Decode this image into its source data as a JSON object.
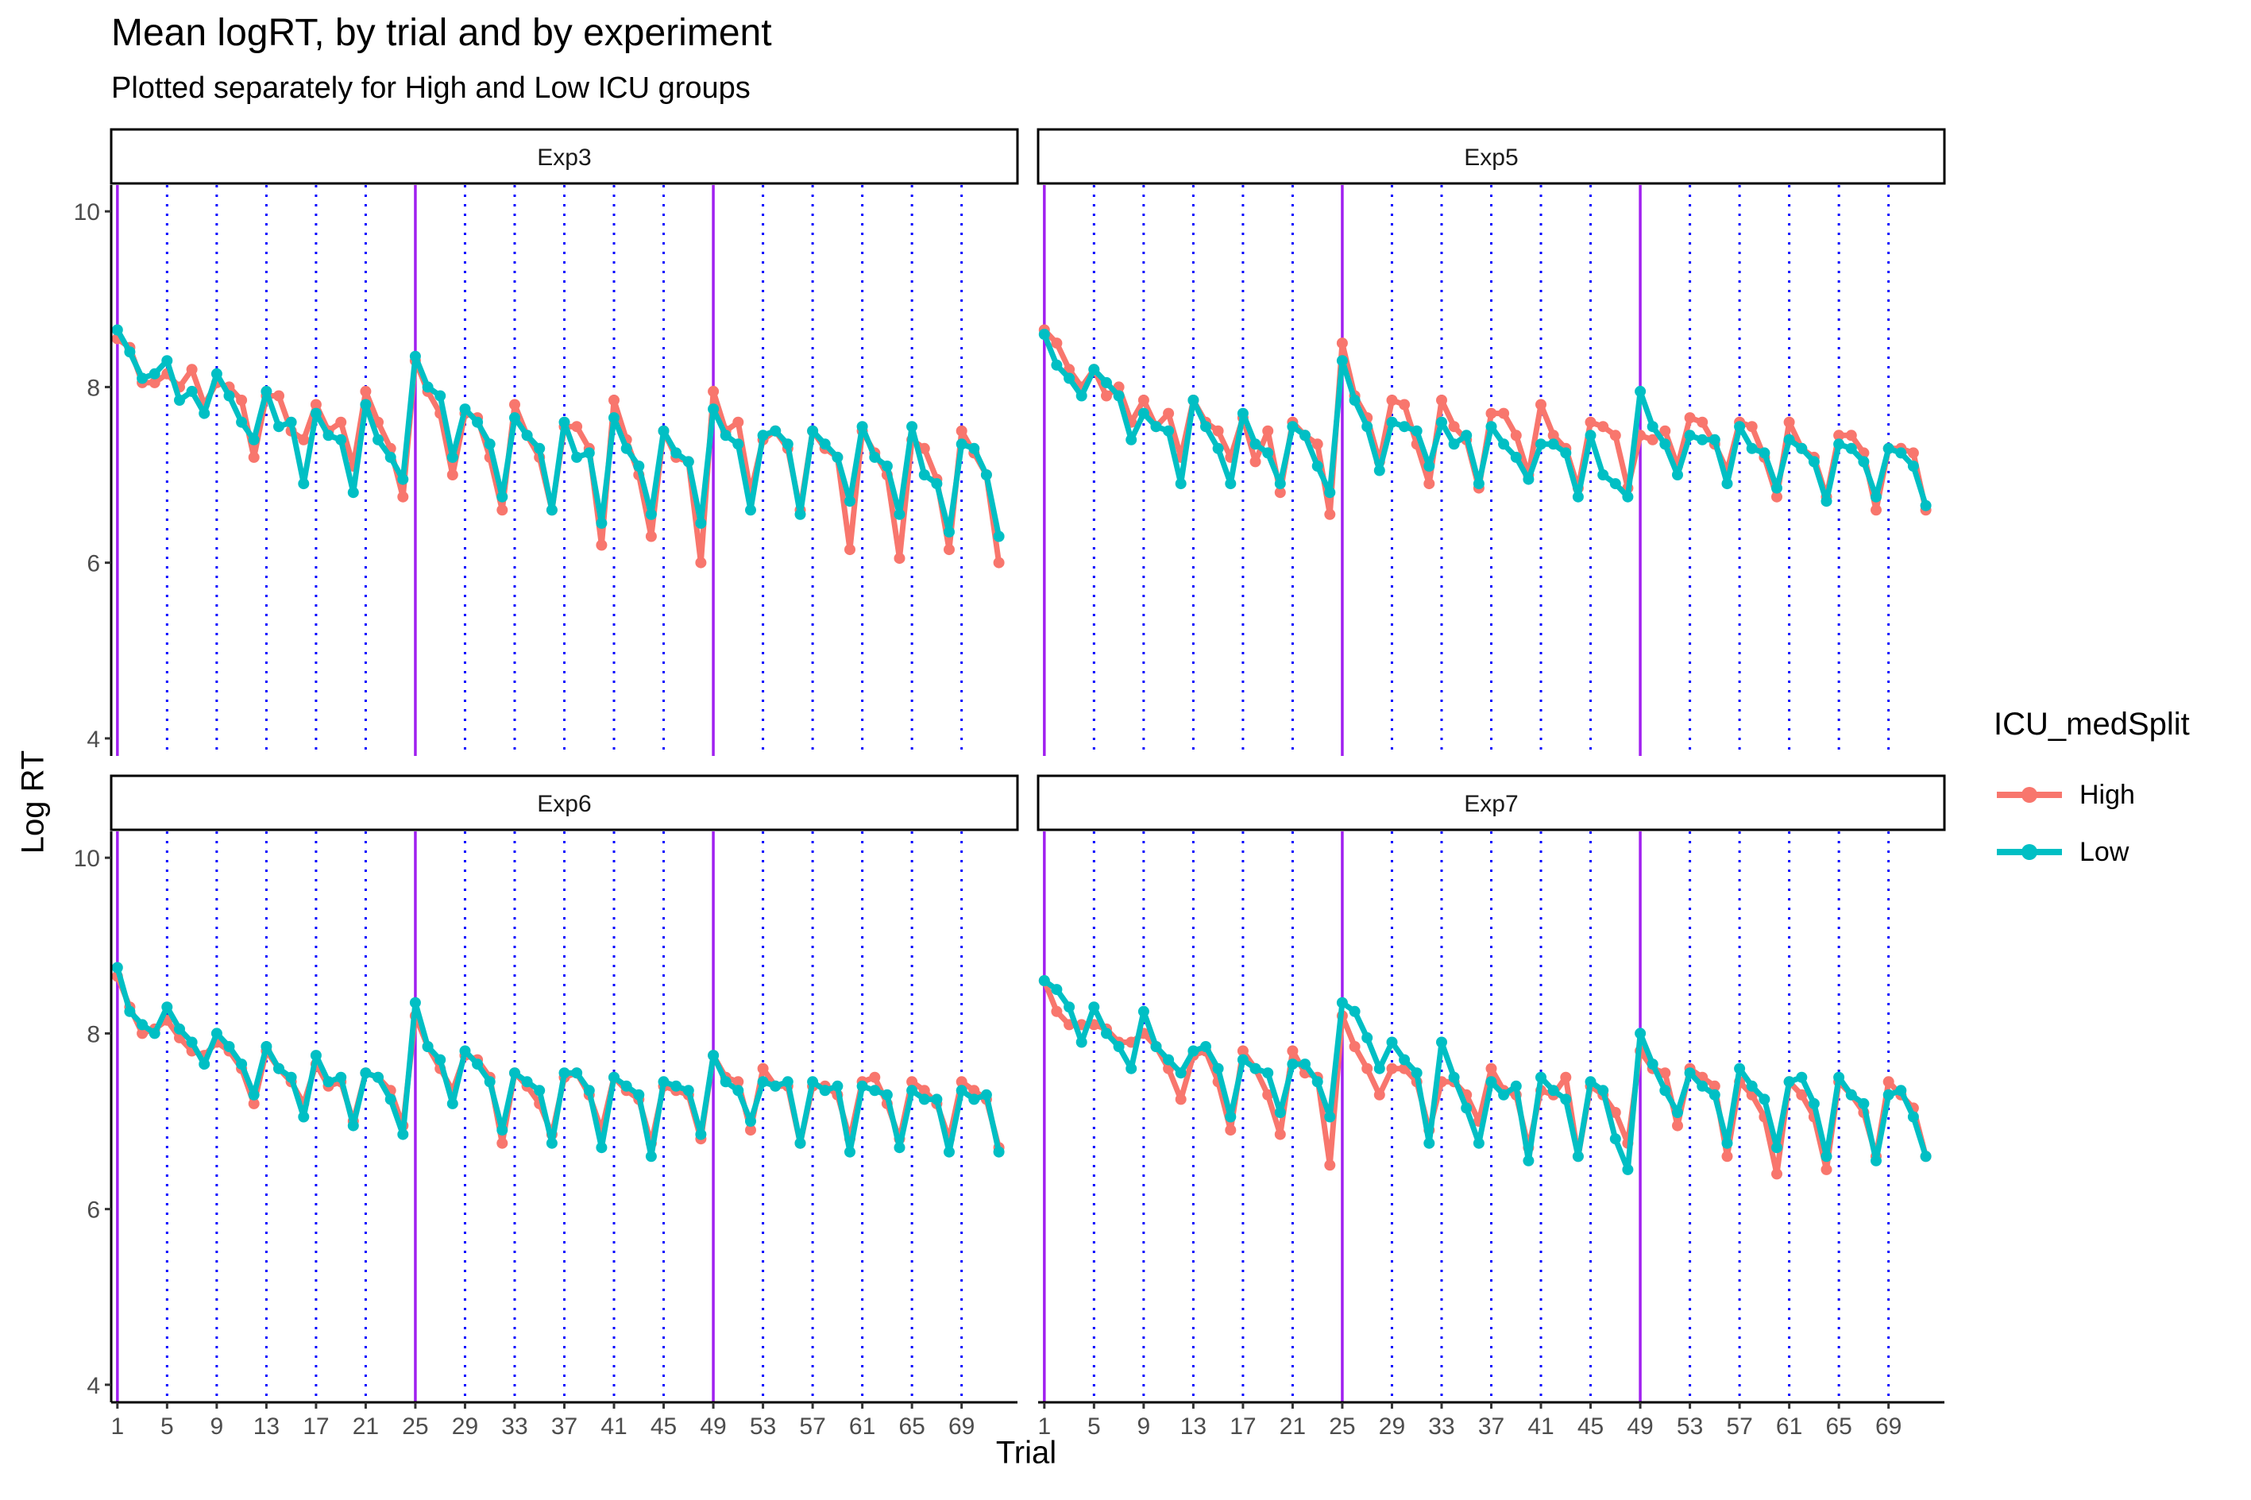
{
  "chart_data": {
    "type": "line",
    "title": "Mean logRT, by trial and by experiment",
    "subtitle": "Plotted separately for High and Low ICU groups",
    "xlabel": "Trial",
    "ylabel": "Log RT",
    "xlim": [
      0.5,
      73.5
    ],
    "ylim": [
      3.8,
      10.3
    ],
    "yticks": [
      4,
      6,
      8,
      10
    ],
    "xticks": [
      1,
      5,
      9,
      13,
      17,
      21,
      25,
      29,
      33,
      37,
      41,
      45,
      49,
      53,
      57,
      61,
      65,
      69
    ],
    "block_lines": [
      1,
      25,
      49
    ],
    "grid_lines_dotted": [
      5,
      9,
      13,
      17,
      21,
      29,
      33,
      37,
      41,
      45,
      53,
      57,
      61,
      65,
      69
    ],
    "legend": {
      "title": "ICU_medSplit",
      "position": "right"
    },
    "colors": {
      "High": "#F8766D",
      "Low": "#00BFC4",
      "block_line": "#A020F0",
      "dotted_line": "#0000FF"
    },
    "x": [
      1,
      2,
      3,
      4,
      5,
      6,
      7,
      8,
      9,
      10,
      11,
      12,
      13,
      14,
      15,
      16,
      17,
      18,
      19,
      20,
      21,
      22,
      23,
      24,
      25,
      26,
      27,
      28,
      29,
      30,
      31,
      32,
      33,
      34,
      35,
      36,
      37,
      38,
      39,
      40,
      41,
      42,
      43,
      44,
      45,
      46,
      47,
      48,
      49,
      50,
      51,
      52,
      53,
      54,
      55,
      56,
      57,
      58,
      59,
      60,
      61,
      62,
      63,
      64,
      65,
      66,
      67,
      68,
      69,
      70,
      71,
      72
    ],
    "panels": [
      {
        "name": "Exp3",
        "series": [
          {
            "name": "High",
            "values": [
              8.55,
              8.45,
              8.05,
              8.05,
              8.15,
              8.0,
              8.2,
              7.8,
              8.05,
              8.0,
              7.85,
              7.2,
              7.9,
              7.9,
              7.5,
              7.4,
              7.8,
              7.5,
              7.6,
              7.1,
              7.95,
              7.6,
              7.3,
              6.75,
              8.3,
              7.95,
              7.7,
              7.0,
              7.7,
              7.65,
              7.2,
              6.6,
              7.8,
              7.45,
              7.2,
              6.6,
              7.55,
              7.55,
              7.3,
              6.2,
              7.85,
              7.4,
              7.0,
              6.3,
              7.5,
              7.2,
              7.15,
              6.0,
              7.95,
              7.5,
              7.6,
              6.8,
              7.4,
              7.5,
              7.3,
              6.6,
              7.5,
              7.3,
              7.2,
              6.15,
              7.5,
              7.25,
              7.0,
              6.05,
              7.4,
              7.3,
              6.95,
              6.15,
              7.5,
              7.25,
              7.0,
              6.0
            ]
          },
          {
            "name": "Low",
            "values": [
              8.65,
              8.4,
              8.1,
              8.15,
              8.3,
              7.85,
              7.95,
              7.7,
              8.15,
              7.9,
              7.6,
              7.4,
              7.95,
              7.55,
              7.6,
              6.9,
              7.7,
              7.45,
              7.4,
              6.8,
              7.8,
              7.4,
              7.2,
              6.95,
              8.35,
              8.0,
              7.9,
              7.2,
              7.75,
              7.6,
              7.35,
              6.75,
              7.65,
              7.45,
              7.3,
              6.6,
              7.6,
              7.2,
              7.25,
              6.45,
              7.65,
              7.3,
              7.1,
              6.55,
              7.5,
              7.25,
              7.15,
              6.45,
              7.75,
              7.45,
              7.35,
              6.6,
              7.45,
              7.5,
              7.35,
              6.55,
              7.5,
              7.35,
              7.2,
              6.7,
              7.55,
              7.2,
              7.1,
              6.55,
              7.55,
              7.0,
              6.9,
              6.35,
              7.35,
              7.3,
              7.0,
              6.3
            ]
          }
        ]
      },
      {
        "name": "Exp5",
        "series": [
          {
            "name": "High",
            "values": [
              8.65,
              8.5,
              8.2,
              8.0,
              8.2,
              7.9,
              8.0,
              7.6,
              7.85,
              7.55,
              7.7,
              7.2,
              7.85,
              7.6,
              7.5,
              7.2,
              7.65,
              7.15,
              7.5,
              6.8,
              7.6,
              7.45,
              7.35,
              6.55,
              8.5,
              7.9,
              7.65,
              7.15,
              7.85,
              7.8,
              7.35,
              6.9,
              7.85,
              7.55,
              7.4,
              6.85,
              7.7,
              7.7,
              7.45,
              7.0,
              7.8,
              7.45,
              7.3,
              6.85,
              7.6,
              7.55,
              7.45,
              6.85,
              7.45,
              7.4,
              7.5,
              7.1,
              7.65,
              7.6,
              7.35,
              7.05,
              7.6,
              7.55,
              7.2,
              6.75,
              7.6,
              7.3,
              7.2,
              6.75,
              7.45,
              7.45,
              7.25,
              6.6,
              7.3,
              7.3,
              7.25,
              6.6
            ]
          },
          {
            "name": "Low",
            "values": [
              8.6,
              8.25,
              8.1,
              7.9,
              8.2,
              8.05,
              7.9,
              7.4,
              7.7,
              7.55,
              7.5,
              6.9,
              7.85,
              7.55,
              7.3,
              6.9,
              7.7,
              7.35,
              7.25,
              6.9,
              7.55,
              7.45,
              7.1,
              6.8,
              8.3,
              7.85,
              7.55,
              7.05,
              7.6,
              7.55,
              7.5,
              7.1,
              7.6,
              7.35,
              7.45,
              6.9,
              7.55,
              7.35,
              7.2,
              6.95,
              7.35,
              7.35,
              7.25,
              6.75,
              7.45,
              7.0,
              6.9,
              6.75,
              7.95,
              7.55,
              7.35,
              7.0,
              7.45,
              7.4,
              7.4,
              6.9,
              7.55,
              7.3,
              7.25,
              6.85,
              7.4,
              7.3,
              7.15,
              6.7,
              7.35,
              7.3,
              7.15,
              6.75,
              7.3,
              7.25,
              7.1,
              6.65
            ]
          }
        ]
      },
      {
        "name": "Exp6",
        "series": [
          {
            "name": "High",
            "values": [
              8.65,
              8.3,
              8.0,
              8.05,
              8.15,
              7.95,
              7.8,
              7.75,
              7.9,
              7.8,
              7.6,
              7.2,
              7.8,
              7.6,
              7.45,
              7.2,
              7.65,
              7.4,
              7.45,
              7.0,
              7.55,
              7.5,
              7.35,
              6.95,
              8.2,
              7.85,
              7.6,
              7.35,
              7.75,
              7.7,
              7.5,
              6.75,
              7.55,
              7.4,
              7.2,
              6.85,
              7.5,
              7.55,
              7.3,
              6.9,
              7.5,
              7.35,
              7.25,
              6.75,
              7.4,
              7.35,
              7.3,
              6.8,
              7.75,
              7.5,
              7.45,
              6.9,
              7.6,
              7.4,
              7.4,
              6.75,
              7.4,
              7.4,
              7.3,
              6.8,
              7.45,
              7.5,
              7.2,
              6.8,
              7.45,
              7.35,
              7.2,
              6.8,
              7.45,
              7.35,
              7.25,
              6.7
            ]
          },
          {
            "name": "Low",
            "values": [
              8.75,
              8.25,
              8.1,
              8.0,
              8.3,
              8.05,
              7.9,
              7.65,
              8.0,
              7.85,
              7.65,
              7.3,
              7.85,
              7.6,
              7.5,
              7.05,
              7.75,
              7.45,
              7.5,
              6.95,
              7.55,
              7.5,
              7.25,
              6.85,
              8.35,
              7.85,
              7.7,
              7.2,
              7.8,
              7.65,
              7.45,
              6.9,
              7.55,
              7.45,
              7.35,
              6.75,
              7.55,
              7.55,
              7.35,
              6.7,
              7.5,
              7.4,
              7.3,
              6.6,
              7.45,
              7.4,
              7.35,
              6.85,
              7.75,
              7.45,
              7.35,
              7.0,
              7.45,
              7.4,
              7.45,
              6.75,
              7.45,
              7.35,
              7.4,
              6.65,
              7.4,
              7.35,
              7.3,
              6.7,
              7.35,
              7.25,
              7.25,
              6.65,
              7.35,
              7.25,
              7.3,
              6.65
            ]
          }
        ]
      },
      {
        "name": "Exp7",
        "series": [
          {
            "name": "High",
            "values": [
              8.6,
              8.25,
              8.1,
              8.1,
              8.1,
              8.05,
              7.9,
              7.9,
              8.0,
              7.85,
              7.6,
              7.25,
              7.75,
              7.8,
              7.45,
              6.9,
              7.8,
              7.6,
              7.3,
              6.85,
              7.8,
              7.55,
              7.5,
              6.5,
              8.2,
              7.85,
              7.6,
              7.3,
              7.6,
              7.6,
              7.45,
              6.9,
              7.45,
              7.45,
              7.3,
              7.0,
              7.6,
              7.35,
              7.3,
              6.7,
              7.35,
              7.3,
              7.5,
              6.6,
              7.4,
              7.3,
              7.1,
              6.75,
              7.8,
              7.6,
              7.55,
              6.95,
              7.6,
              7.5,
              7.4,
              6.6,
              7.45,
              7.3,
              7.05,
              6.4,
              7.45,
              7.3,
              7.05,
              6.45,
              7.45,
              7.3,
              7.1,
              6.6,
              7.45,
              7.3,
              7.15,
              6.6
            ]
          },
          {
            "name": "Low",
            "values": [
              8.6,
              8.5,
              8.3,
              7.9,
              8.3,
              8.0,
              7.85,
              7.6,
              8.25,
              7.85,
              7.7,
              7.55,
              7.8,
              7.85,
              7.6,
              7.05,
              7.7,
              7.6,
              7.55,
              7.1,
              7.65,
              7.65,
              7.45,
              7.05,
              8.35,
              8.25,
              7.95,
              7.6,
              7.9,
              7.7,
              7.55,
              6.75,
              7.9,
              7.5,
              7.15,
              6.75,
              7.45,
              7.3,
              7.4,
              6.55,
              7.5,
              7.35,
              7.25,
              6.6,
              7.45,
              7.35,
              6.8,
              6.45,
              8.0,
              7.65,
              7.35,
              7.1,
              7.55,
              7.4,
              7.3,
              6.75,
              7.6,
              7.4,
              7.25,
              6.7,
              7.45,
              7.5,
              7.2,
              6.6,
              7.5,
              7.3,
              7.2,
              6.55,
              7.3,
              7.35,
              7.05,
              6.6
            ]
          }
        ]
      }
    ]
  }
}
